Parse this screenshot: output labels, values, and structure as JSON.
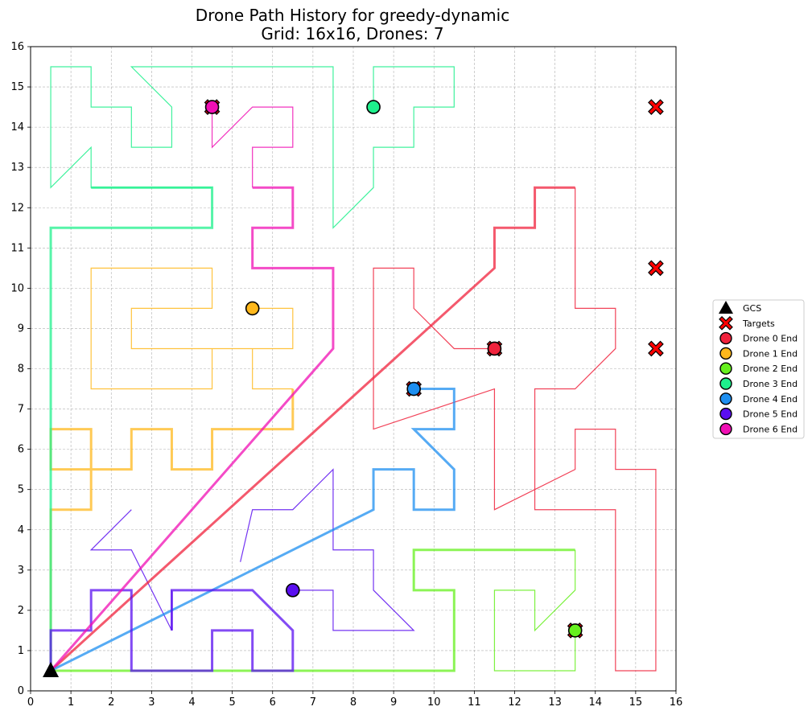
{
  "chart_data": {
    "type": "scatter",
    "title_line1": "Drone Path History for greedy-dynamic",
    "title_line2": "Grid: 16x16, Drones: 7",
    "xlabel": "",
    "ylabel": "",
    "xlim": [
      0,
      16
    ],
    "ylim": [
      0,
      16
    ],
    "xticks": [
      "0",
      "1",
      "2",
      "3",
      "4",
      "5",
      "6",
      "7",
      "8",
      "9",
      "10",
      "11",
      "12",
      "13",
      "14",
      "15",
      "16"
    ],
    "yticks": [
      "0",
      "1",
      "2",
      "3",
      "4",
      "5",
      "6",
      "7",
      "8",
      "9",
      "10",
      "11",
      "12",
      "13",
      "14",
      "15",
      "16"
    ],
    "grid": true,
    "legend_placement": "right-outside",
    "gcs": {
      "label": "GCS",
      "x": 0.5,
      "y": 0.5,
      "color": "#000000"
    },
    "targets": {
      "label": "Targets",
      "color": "#ff0000",
      "points": [
        [
          15.5,
          14.5
        ],
        [
          15.5,
          10.5
        ],
        [
          15.5,
          8.5
        ],
        [
          11.5,
          8.5
        ],
        [
          9.5,
          7.5
        ],
        [
          13.5,
          1.5
        ],
        [
          4.5,
          14.5
        ]
      ]
    },
    "series": [
      {
        "name": "Drone 0 End",
        "color": "#f0223c",
        "end": [
          11.5,
          8.5
        ],
        "history": [
          [
            11.5,
            8.5
          ],
          [
            10.5,
            8.5
          ],
          [
            9.5,
            9.5
          ],
          [
            9.5,
            10.5
          ],
          [
            8.5,
            10.5
          ],
          [
            8.5,
            6.5
          ],
          [
            11.5,
            7.5
          ],
          [
            11.5,
            4.5
          ],
          [
            13.5,
            5.5
          ],
          [
            13.5,
            6.5
          ],
          [
            14.5,
            6.5
          ],
          [
            14.5,
            5.5
          ],
          [
            15.5,
            5.5
          ],
          [
            15.5,
            0.5
          ],
          [
            14.5,
            0.5
          ],
          [
            14.5,
            4.5
          ],
          [
            12.5,
            4.5
          ],
          [
            12.5,
            7.5
          ],
          [
            13.5,
            7.5
          ],
          [
            14.5,
            8.5
          ],
          [
            14.5,
            9.5
          ],
          [
            13.5,
            9.5
          ],
          [
            13.5,
            12.5
          ]
        ],
        "current": [
          [
            0.5,
            0.5
          ],
          [
            11.5,
            10.5
          ],
          [
            11.5,
            11.5
          ],
          [
            12.5,
            11.5
          ],
          [
            12.5,
            12.5
          ],
          [
            13.5,
            12.5
          ]
        ]
      },
      {
        "name": "Drone 1 End",
        "color": "#ffb81c",
        "end": [
          5.5,
          9.5
        ],
        "history": [
          [
            5.5,
            9.5
          ],
          [
            6.5,
            9.5
          ],
          [
            6.5,
            8.5
          ],
          [
            2.5,
            8.5
          ],
          [
            2.5,
            9.5
          ],
          [
            4.5,
            9.5
          ],
          [
            4.5,
            10.5
          ],
          [
            1.5,
            10.5
          ],
          [
            1.5,
            7.5
          ],
          [
            4.5,
            7.5
          ],
          [
            4.5,
            8.5
          ],
          [
            5.5,
            8.5
          ],
          [
            5.5,
            7.5
          ],
          [
            6.5,
            7.5
          ]
        ],
        "current": [
          [
            0.5,
            0.5
          ],
          [
            0.5,
            4.5
          ],
          [
            1.5,
            4.5
          ],
          [
            1.5,
            5.5
          ],
          [
            0.5,
            5.5
          ],
          [
            0.5,
            6.5
          ],
          [
            1.5,
            6.5
          ],
          [
            1.5,
            5.5
          ],
          [
            2.5,
            5.5
          ],
          [
            2.5,
            6.5
          ],
          [
            3.5,
            6.5
          ],
          [
            3.5,
            5.5
          ],
          [
            4.5,
            5.5
          ],
          [
            4.5,
            6.5
          ],
          [
            6.5,
            6.5
          ],
          [
            6.5,
            7.5
          ]
        ]
      },
      {
        "name": "Drone 2 End",
        "color": "#66f01e",
        "end": [
          13.5,
          1.5
        ],
        "history": [
          [
            13.5,
            1.5
          ],
          [
            13.5,
            0.5
          ],
          [
            11.5,
            0.5
          ],
          [
            11.5,
            2.5
          ],
          [
            12.5,
            2.5
          ],
          [
            12.5,
            1.5
          ],
          [
            13.5,
            2.5
          ],
          [
            13.5,
            3.5
          ]
        ],
        "current": [
          [
            0.5,
            0.5
          ],
          [
            10.5,
            0.5
          ],
          [
            10.5,
            2.5
          ],
          [
            9.5,
            2.5
          ],
          [
            9.5,
            3.5
          ],
          [
            13.5,
            3.5
          ]
        ]
      },
      {
        "name": "Drone 3 End",
        "color": "#1ef08c",
        "end": [
          8.5,
          14.5
        ],
        "history": [
          [
            8.5,
            14.5
          ],
          [
            8.5,
            15.5
          ],
          [
            10.5,
            15.5
          ],
          [
            10.5,
            14.5
          ],
          [
            9.5,
            14.5
          ],
          [
            9.5,
            13.5
          ],
          [
            8.5,
            13.5
          ],
          [
            8.5,
            12.5
          ],
          [
            7.5,
            11.5
          ],
          [
            7.5,
            15.5
          ],
          [
            2.5,
            15.5
          ],
          [
            3.5,
            14.5
          ],
          [
            3.5,
            13.5
          ],
          [
            2.5,
            13.5
          ],
          [
            2.5,
            14.5
          ],
          [
            1.5,
            14.5
          ],
          [
            1.5,
            15.5
          ],
          [
            0.5,
            15.5
          ],
          [
            0.5,
            12.5
          ],
          [
            1.5,
            13.5
          ],
          [
            1.5,
            12.5
          ],
          [
            4.5,
            12.5
          ]
        ],
        "current": [
          [
            0.5,
            0.5
          ],
          [
            0.5,
            11.5
          ],
          [
            4.5,
            11.5
          ],
          [
            4.5,
            12.5
          ],
          [
            1.5,
            12.5
          ]
        ]
      },
      {
        "name": "Drone 4 End",
        "color": "#1e8ff0",
        "end": [
          9.5,
          7.5
        ],
        "history": [],
        "current": [
          [
            0.5,
            0.5
          ],
          [
            8.5,
            4.5
          ],
          [
            8.5,
            5.5
          ],
          [
            9.5,
            5.5
          ],
          [
            9.5,
            4.5
          ],
          [
            10.5,
            4.5
          ],
          [
            10.5,
            5.5
          ],
          [
            9.5,
            6.5
          ],
          [
            10.5,
            6.5
          ],
          [
            10.5,
            7.5
          ],
          [
            9.5,
            7.5
          ]
        ]
      },
      {
        "name": "Drone 5 End",
        "color": "#5a0ff0",
        "end": [
          6.5,
          2.5
        ],
        "history": [
          [
            6.5,
            2.5
          ],
          [
            7.5,
            2.5
          ],
          [
            7.5,
            1.5
          ],
          [
            9.5,
            1.5
          ],
          [
            8.5,
            2.5
          ],
          [
            8.5,
            3.5
          ],
          [
            7.5,
            3.5
          ],
          [
            7.5,
            5.5
          ],
          [
            6.5,
            4.5
          ],
          [
            5.5,
            4.5
          ],
          [
            5.2,
            3.2
          ]
        ],
        "history_b": [
          [
            2.5,
            4.5
          ],
          [
            1.5,
            3.5
          ],
          [
            2.5,
            3.5
          ],
          [
            3.5,
            1.5
          ],
          [
            3.5,
            2.5
          ]
        ],
        "current": [
          [
            0.5,
            0.5
          ],
          [
            0.5,
            1.5
          ],
          [
            1.5,
            1.5
          ],
          [
            1.5,
            2.5
          ],
          [
            2.5,
            2.5
          ],
          [
            2.5,
            0.5
          ],
          [
            4.5,
            0.5
          ],
          [
            4.5,
            1.5
          ],
          [
            5.5,
            1.5
          ],
          [
            5.5,
            0.5
          ],
          [
            6.5,
            0.5
          ],
          [
            6.5,
            1.5
          ],
          [
            5.5,
            2.5
          ],
          [
            3.5,
            2.5
          ],
          [
            3.5,
            1.5
          ]
        ]
      },
      {
        "name": "Drone 6 End",
        "color": "#f00fb4",
        "end": [
          4.5,
          14.5
        ],
        "history": [
          [
            4.5,
            14.5
          ],
          [
            4.5,
            13.5
          ],
          [
            5.5,
            14.5
          ],
          [
            6.5,
            14.5
          ],
          [
            6.5,
            13.5
          ],
          [
            5.5,
            13.5
          ],
          [
            5.5,
            12.5
          ]
        ],
        "current": [
          [
            0.5,
            0.5
          ],
          [
            7.5,
            8.5
          ],
          [
            7.5,
            10.5
          ],
          [
            5.5,
            10.5
          ],
          [
            5.5,
            11.5
          ],
          [
            6.5,
            11.5
          ],
          [
            6.5,
            12.5
          ],
          [
            5.5,
            12.5
          ]
        ]
      }
    ]
  }
}
